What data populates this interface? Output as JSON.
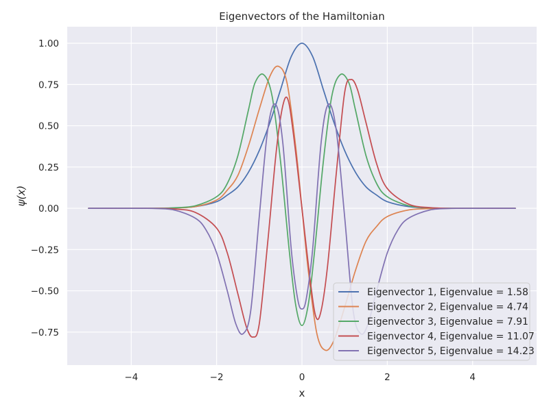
{
  "chart_data": {
    "type": "line",
    "title": "Eigenvectors of the Hamiltonian",
    "xlabel": "x",
    "ylabel": "ψ(x)",
    "xlim": [
      -5.5,
      5.5
    ],
    "ylim": [
      -0.95,
      1.1
    ],
    "grid": true,
    "legend_placement": "lower-right",
    "background": "#eaeaf2",
    "grid_color": "#ffffff",
    "x_ticks": [
      {
        "value": -4,
        "label": "−4"
      },
      {
        "value": -2,
        "label": "−2"
      },
      {
        "value": 0,
        "label": "0"
      },
      {
        "value": 2,
        "label": "2"
      },
      {
        "value": 4,
        "label": "4"
      }
    ],
    "y_ticks": [
      {
        "value": 1.0,
        "label": "1.00"
      },
      {
        "value": 0.75,
        "label": "0.75"
      },
      {
        "value": 0.5,
        "label": "0.50"
      },
      {
        "value": 0.25,
        "label": "0.25"
      },
      {
        "value": 0.0,
        "label": "0.00"
      },
      {
        "value": -0.25,
        "label": "−0.25"
      },
      {
        "value": -0.5,
        "label": "−0.50"
      },
      {
        "value": -0.75,
        "label": "−0.75"
      }
    ],
    "series": [
      {
        "name": "Eigenvector 1, Eigenvalue = 1.58",
        "color": "#4c72b0",
        "x": [
          -5,
          -4,
          -3.5,
          -3,
          -2.5,
          -2,
          -1.75,
          -1.5,
          -1.25,
          -1,
          -0.75,
          -0.5,
          -0.25,
          0,
          0.25,
          0.5,
          0.75,
          1,
          1.25,
          1.5,
          1.75,
          2,
          2.5,
          3,
          3.5,
          4,
          5
        ],
        "y": [
          0,
          0.0,
          0.0,
          0.002,
          0.01,
          0.04,
          0.08,
          0.13,
          0.22,
          0.35,
          0.52,
          0.72,
          0.92,
          1.0,
          0.92,
          0.72,
          0.52,
          0.35,
          0.22,
          0.13,
          0.08,
          0.04,
          0.01,
          0.002,
          0.0,
          0.0,
          0
        ]
      },
      {
        "name": "Eigenvector 2, Eigenvalue = 4.74",
        "color": "#dd8452",
        "x": [
          -5,
          -4,
          -3.5,
          -3,
          -2.5,
          -2,
          -1.75,
          -1.5,
          -1.25,
          -1,
          -0.75,
          -0.55,
          -0.35,
          -0.15,
          0,
          0.15,
          0.35,
          0.55,
          0.75,
          1,
          1.25,
          1.5,
          1.75,
          2,
          2.5,
          3,
          3.5,
          4,
          5
        ],
        "y": [
          0,
          0.0,
          0.0,
          0.002,
          0.01,
          0.05,
          0.11,
          0.2,
          0.38,
          0.6,
          0.8,
          0.86,
          0.76,
          0.38,
          0.0,
          -0.38,
          -0.76,
          -0.86,
          -0.8,
          -0.6,
          -0.38,
          -0.2,
          -0.11,
          -0.05,
          -0.01,
          -0.002,
          0.0,
          0.0,
          0
        ]
      },
      {
        "name": "Eigenvector 3, Eigenvalue = 7.91",
        "color": "#55a868",
        "x": [
          -5,
          -4,
          -3.5,
          -3,
          -2.5,
          -2,
          -1.75,
          -1.5,
          -1.25,
          -1.1,
          -0.9,
          -0.7,
          -0.5,
          -0.3,
          -0.15,
          0,
          0.15,
          0.3,
          0.5,
          0.7,
          0.9,
          1.1,
          1.25,
          1.5,
          1.75,
          2,
          2.5,
          3,
          3.5,
          4,
          5
        ],
        "y": [
          0,
          0.0,
          0.0,
          0.003,
          0.015,
          0.07,
          0.15,
          0.32,
          0.6,
          0.76,
          0.81,
          0.68,
          0.28,
          -0.25,
          -0.58,
          -0.71,
          -0.58,
          -0.25,
          0.28,
          0.68,
          0.81,
          0.76,
          0.6,
          0.32,
          0.15,
          0.07,
          0.015,
          0.003,
          0.0,
          0.0,
          0
        ]
      },
      {
        "name": "Eigenvector 4, Eigenvalue = 11.07",
        "color": "#c44e52",
        "x": [
          -5,
          -4,
          -3.5,
          -3,
          -2.5,
          -2,
          -1.75,
          -1.5,
          -1.3,
          -1.15,
          -1.0,
          -0.8,
          -0.6,
          -0.45,
          -0.33,
          -0.2,
          0,
          0.2,
          0.33,
          0.45,
          0.6,
          0.8,
          1.0,
          1.15,
          1.3,
          1.5,
          1.75,
          2,
          2.5,
          3,
          3.5,
          4,
          5
        ],
        "y": [
          0,
          0.0,
          0.0,
          -0.004,
          -0.025,
          -0.12,
          -0.27,
          -0.52,
          -0.72,
          -0.78,
          -0.7,
          -0.2,
          0.35,
          0.62,
          0.66,
          0.45,
          0.0,
          -0.45,
          -0.66,
          -0.62,
          -0.35,
          0.2,
          0.7,
          0.78,
          0.72,
          0.52,
          0.27,
          0.12,
          0.025,
          0.004,
          0.0,
          0.0,
          0
        ]
      },
      {
        "name": "Eigenvector 5, Eigenvalue = 14.23",
        "color": "#8172b2",
        "x": [
          -5,
          -4,
          -3.5,
          -3,
          -2.5,
          -2.25,
          -2,
          -1.75,
          -1.55,
          -1.38,
          -1.2,
          -1.0,
          -0.8,
          -0.62,
          -0.45,
          -0.25,
          -0.1,
          0,
          0.1,
          0.25,
          0.45,
          0.62,
          0.8,
          1.0,
          1.2,
          1.38,
          1.55,
          1.75,
          2,
          2.25,
          2.5,
          3,
          3.5,
          4,
          5
        ],
        "y": [
          0,
          0.0,
          -0.001,
          -0.01,
          -0.06,
          -0.13,
          -0.27,
          -0.5,
          -0.7,
          -0.76,
          -0.62,
          -0.05,
          0.48,
          0.63,
          0.4,
          -0.25,
          -0.55,
          -0.61,
          -0.55,
          -0.25,
          0.4,
          0.63,
          0.48,
          -0.05,
          -0.62,
          -0.76,
          -0.7,
          -0.5,
          -0.27,
          -0.13,
          -0.06,
          -0.01,
          -0.001,
          0.0,
          0
        ]
      }
    ]
  }
}
